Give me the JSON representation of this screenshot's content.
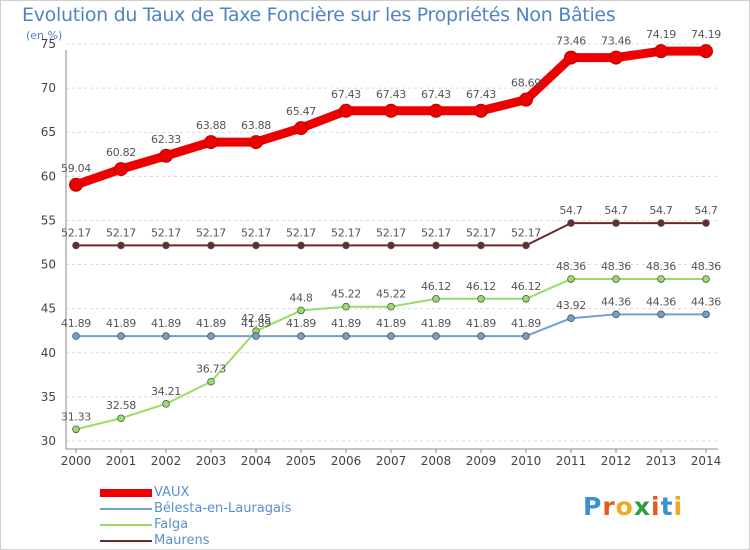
{
  "title": "Evolution du Taux de Taxe Foncière sur les Propriétés Non Bâties",
  "unit_label": "(en %)",
  "logo": {
    "text": "Proxiti",
    "letters": [
      "P",
      "r",
      "o",
      "x",
      "i",
      "t",
      "i"
    ],
    "colors": [
      "#3a8fd6",
      "#e8591a",
      "#f2a81d",
      "#2e9e3e",
      "#e8591a",
      "#3a8fd6",
      "#f2a81d"
    ]
  },
  "chart_data": {
    "type": "line",
    "title": "Evolution du Taux de Taxe Foncière sur les Propriétés Non Bâties",
    "ylabel": "(en %)",
    "xlabel": "",
    "x": [
      "2000",
      "2001",
      "2002",
      "2003",
      "2004",
      "2005",
      "2006",
      "2007",
      "2008",
      "2009",
      "2010",
      "2011",
      "2012",
      "2013",
      "2014"
    ],
    "ylim": [
      30,
      75
    ],
    "yticks": [
      30,
      35,
      40,
      45,
      50,
      55,
      60,
      65,
      70,
      75
    ],
    "grid": "horizontal dashed",
    "legend": "bottom-left",
    "series": [
      {
        "name": "VAUX",
        "color": "#ee0000",
        "values": [
          59.04,
          60.82,
          62.33,
          63.88,
          63.88,
          65.47,
          67.43,
          67.43,
          67.43,
          67.43,
          68.69,
          73.46,
          73.46,
          74.19,
          74.19
        ],
        "labels": [
          "59.04",
          "60.82",
          "62.33",
          "63.88",
          "63.88",
          "65.47",
          "67.43",
          "67.43",
          "67.43",
          "67.43",
          "68.69",
          "73.46",
          "73.46",
          "74.19",
          "74.19"
        ]
      },
      {
        "name": "Bélesta-en-Lauragais",
        "color": "#6fa0cf",
        "values": [
          41.89,
          41.89,
          41.89,
          41.89,
          41.89,
          41.89,
          41.89,
          41.89,
          41.89,
          41.89,
          41.89,
          43.92,
          44.36,
          44.36,
          44.36
        ],
        "labels": [
          "41.89",
          "41.89",
          "41.89",
          "41.89",
          "41.89",
          "41.89",
          "41.89",
          "41.89",
          "41.89",
          "41.89",
          "41.89",
          "43.92",
          "44.36",
          "44.36",
          "44.36"
        ]
      },
      {
        "name": "Falga",
        "color": "#99dd66",
        "values": [
          31.33,
          32.58,
          34.21,
          36.73,
          42.45,
          44.8,
          45.22,
          45.22,
          46.12,
          46.12,
          46.12,
          48.36,
          48.36,
          48.36,
          48.36
        ],
        "labels": [
          "31.33",
          "32.58",
          "34.21",
          "36.73",
          "42.45",
          "44.8",
          "45.22",
          "45.22",
          "46.12",
          "46.12",
          "46.12",
          "48.36",
          "48.36",
          "48.36",
          "48.36"
        ]
      },
      {
        "name": "Maurens",
        "color": "#6b2a2a",
        "values": [
          52.17,
          52.17,
          52.17,
          52.17,
          52.17,
          52.17,
          52.17,
          52.17,
          52.17,
          52.17,
          52.17,
          54.7,
          54.7,
          54.7,
          54.7
        ],
        "labels": [
          "52.17",
          "52.17",
          "52.17",
          "52.17",
          "52.17",
          "52.17",
          "52.17",
          "52.17",
          "52.17",
          "52.17",
          "52.17",
          "54.7",
          "54.7",
          "54.7",
          "54.7"
        ]
      }
    ]
  }
}
